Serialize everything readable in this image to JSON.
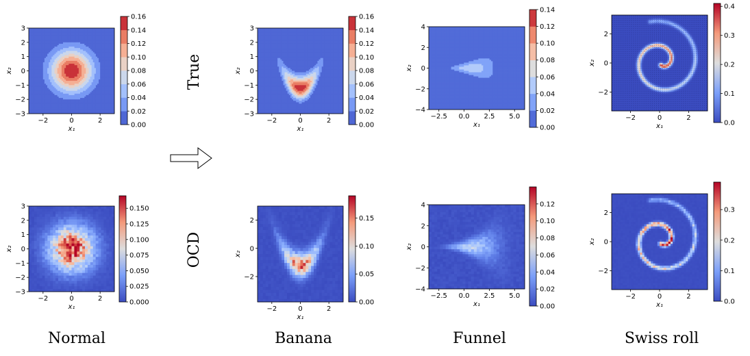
{
  "row_labels": [
    "True",
    "OCD"
  ],
  "column_labels": [
    "Normal",
    "Banana",
    "Funnel",
    "Swiss roll"
  ],
  "colormap": {
    "name": "coolwarm",
    "low": "#3b4cc0",
    "mid": "#dddddd",
    "high": "#b40426"
  },
  "arrow_icon": "right-arrow-icon",
  "chart_data": [
    {
      "type": "heatmap",
      "id": "true-normal",
      "row": "True",
      "column": "Normal",
      "style": "filled-contour",
      "xlabel": "x1",
      "ylabel": "x2",
      "xlim": [
        -3,
        3
      ],
      "ylim": [
        -3,
        3
      ],
      "xticks": [
        -2,
        0,
        2
      ],
      "yticks": [
        -3,
        -2,
        -1,
        0,
        1,
        2,
        3
      ],
      "colorbar": {
        "min": 0.0,
        "max": 0.16,
        "levels": [
          0.0,
          0.02,
          0.04,
          0.06,
          0.08,
          0.1,
          0.12,
          0.14,
          0.16
        ],
        "ticks": [
          "0.00",
          "0.02",
          "0.04",
          "0.06",
          "0.08",
          "0.10",
          "0.12",
          "0.14",
          "0.16"
        ]
      }
    },
    {
      "type": "heatmap",
      "id": "true-banana",
      "row": "True",
      "column": "Banana",
      "style": "filled-contour",
      "xlabel": "x1",
      "ylabel": "x2",
      "xlim": [
        -3,
        3
      ],
      "ylim": [
        -3,
        3
      ],
      "xticks": [
        -2,
        0,
        2
      ],
      "yticks": [
        -3,
        -2,
        -1,
        0,
        1,
        2,
        3
      ],
      "colorbar": {
        "min": 0.0,
        "max": 0.16,
        "levels": [
          0.0,
          0.02,
          0.04,
          0.06,
          0.08,
          0.1,
          0.12,
          0.14,
          0.16
        ],
        "ticks": [
          "0.00",
          "0.02",
          "0.04",
          "0.06",
          "0.08",
          "0.10",
          "0.12",
          "0.14",
          "0.16"
        ]
      }
    },
    {
      "type": "heatmap",
      "id": "true-funnel",
      "row": "True",
      "column": "Funnel",
      "style": "filled-contour",
      "xlabel": "x1",
      "ylabel": "x2",
      "xlim": [
        -3.5,
        6
      ],
      "ylim": [
        -4,
        4
      ],
      "xticks": [
        "-2.5",
        "0.0",
        "2.5",
        "5.0"
      ],
      "yticks": [
        -4,
        -2,
        0,
        2,
        4
      ],
      "colorbar": {
        "min": 0.0,
        "max": 0.14,
        "levels": [
          0.0,
          0.02,
          0.04,
          0.06,
          0.08,
          0.1,
          0.12,
          0.14
        ],
        "ticks": [
          "0.00",
          "0.02",
          "0.04",
          "0.06",
          "0.08",
          "0.10",
          "0.12",
          "0.14"
        ]
      }
    },
    {
      "type": "heatmap",
      "id": "true-swissroll",
      "row": "True",
      "column": "Swiss roll",
      "style": "grid",
      "xlabel": "x1",
      "ylabel": "x2",
      "xlim": [
        -3.3,
        3.3
      ],
      "ylim": [
        -3.3,
        3.3
      ],
      "xticks": [
        -2,
        0,
        2
      ],
      "yticks": [
        -2,
        0,
        2
      ],
      "colorbar": {
        "min": 0.0,
        "max": 0.41,
        "ticks": [
          "0.0",
          "0.1",
          "0.2",
          "0.3",
          "0.4"
        ],
        "tickvalues": [
          0,
          0.1,
          0.2,
          0.3,
          0.4
        ]
      }
    },
    {
      "type": "heatmap",
      "id": "ocd-normal",
      "row": "OCD",
      "column": "Normal",
      "style": "grid",
      "xlabel": "x1",
      "ylabel": "x2",
      "xlim": [
        -3,
        3
      ],
      "ylim": [
        -3,
        3
      ],
      "xticks": [
        -2,
        0,
        2
      ],
      "yticks": [
        -3,
        -2,
        -1,
        0,
        1,
        2,
        3
      ],
      "colorbar": {
        "min": 0.0,
        "max": 0.17,
        "ticks": [
          "0.000",
          "0.025",
          "0.050",
          "0.075",
          "0.100",
          "0.125",
          "0.150"
        ],
        "tickvalues": [
          0,
          0.025,
          0.05,
          0.075,
          0.1,
          0.125,
          0.15
        ]
      }
    },
    {
      "type": "heatmap",
      "id": "ocd-banana",
      "row": "OCD",
      "column": "Banana",
      "style": "grid",
      "xlabel": "x1",
      "ylabel": "x2",
      "xlim": [
        -3,
        3
      ],
      "ylim": [
        -3.8,
        3
      ],
      "xticks": [
        -2,
        0,
        2
      ],
      "yticks": [
        -2,
        0,
        2
      ],
      "colorbar": {
        "min": 0.0,
        "max": 0.19,
        "ticks": [
          "0.00",
          "0.05",
          "0.10",
          "0.15"
        ],
        "tickvalues": [
          0,
          0.05,
          0.1,
          0.15
        ]
      }
    },
    {
      "type": "heatmap",
      "id": "ocd-funnel",
      "row": "OCD",
      "column": "Funnel",
      "style": "grid",
      "xlabel": "x1",
      "ylabel": "x2",
      "xlim": [
        -3.5,
        6
      ],
      "ylim": [
        -4,
        4
      ],
      "xticks": [
        "-2.5",
        "0.0",
        "2.5",
        "5.0"
      ],
      "yticks": [
        -4,
        -2,
        0,
        2,
        4
      ],
      "colorbar": {
        "min": 0.0,
        "max": 0.14,
        "ticks": [
          "0.00",
          "0.02",
          "0.04",
          "0.06",
          "0.08",
          "0.10",
          "0.12"
        ],
        "tickvalues": [
          0,
          0.02,
          0.04,
          0.06,
          0.08,
          0.1,
          0.12
        ]
      }
    },
    {
      "type": "heatmap",
      "id": "ocd-swissroll",
      "row": "OCD",
      "column": "Swiss roll",
      "style": "grid",
      "xlabel": "x1",
      "ylabel": "x2",
      "xlim": [
        -3.3,
        3.3
      ],
      "ylim": [
        -3.3,
        3.3
      ],
      "xticks": [
        -2,
        0,
        2
      ],
      "yticks": [
        -2,
        0,
        2
      ],
      "colorbar": {
        "min": 0.0,
        "max": 0.39,
        "ticks": [
          "0.0",
          "0.1",
          "0.2",
          "0.3"
        ],
        "tickvalues": [
          0,
          0.1,
          0.2,
          0.3
        ]
      }
    }
  ]
}
